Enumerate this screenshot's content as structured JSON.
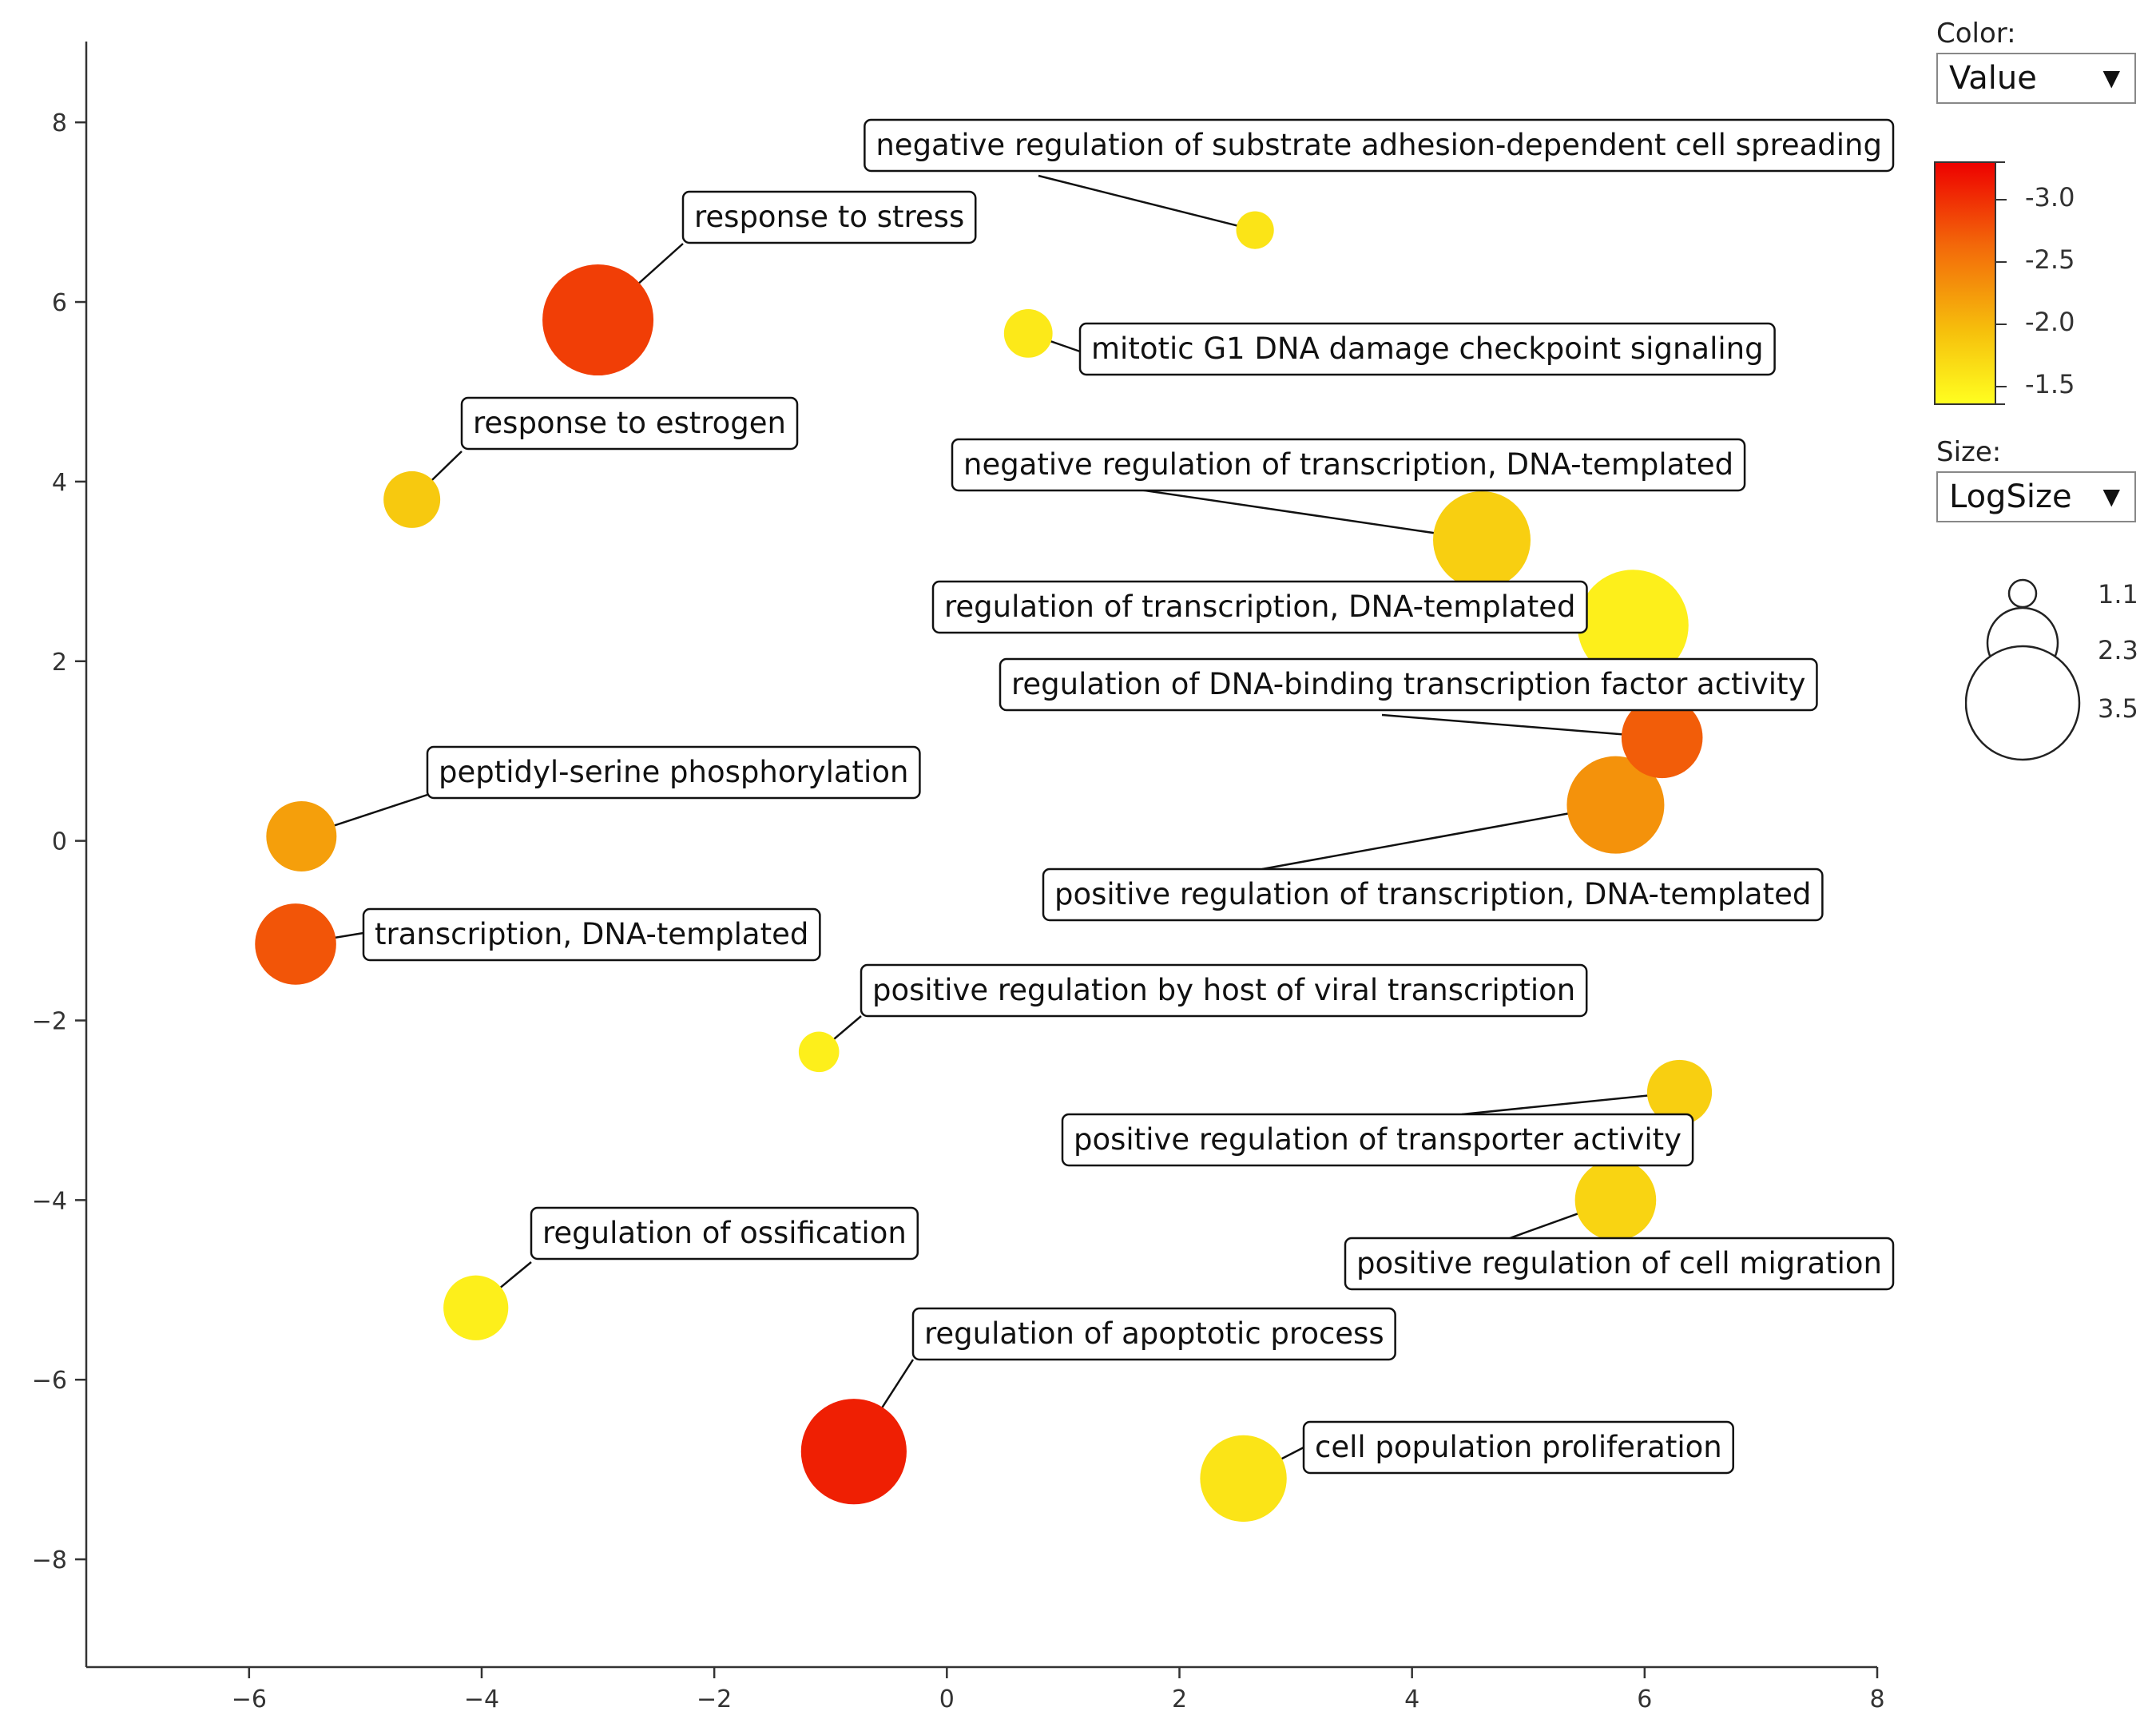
{
  "chart_data": {
    "type": "scatter",
    "xlim": [
      -7.4,
      8.0
    ],
    "ylim": [
      -9.2,
      8.9
    ],
    "xticks": [
      -6,
      -4,
      -2,
      0,
      2,
      4,
      6,
      8
    ],
    "yticks": [
      -8,
      -6,
      -4,
      -2,
      0,
      2,
      4,
      6,
      8
    ],
    "points": [
      {
        "label": "negative regulation of substrate adhesion-dependent cell spreading",
        "x": 2.65,
        "y": 6.8,
        "value": -1.6,
        "logsize": 0.8
      },
      {
        "label": "response to stress",
        "x": -3.0,
        "y": 5.8,
        "value": -2.9,
        "logsize": 3.5
      },
      {
        "label": "mitotic G1 DNA damage checkpoint signaling",
        "x": 0.7,
        "y": 5.65,
        "value": -1.55,
        "logsize": 1.2
      },
      {
        "label": "response to estrogen",
        "x": -4.6,
        "y": 3.8,
        "value": -1.85,
        "logsize": 1.5
      },
      {
        "label": "negative regulation of transcription, DNA-templated",
        "x": 4.6,
        "y": 3.35,
        "value": -1.8,
        "logsize": 3.0
      },
      {
        "label": "regulation of transcription, DNA-templated",
        "x": 5.9,
        "y": 2.4,
        "value": -1.5,
        "logsize": 3.5
      },
      {
        "label": "regulation of DNA-binding transcription factor activity",
        "x": 6.15,
        "y": 1.15,
        "value": -2.7,
        "logsize": 2.4
      },
      {
        "label": "positive regulation of transcription, DNA-templated",
        "x": 5.75,
        "y": 0.4,
        "value": -2.3,
        "logsize": 3.0
      },
      {
        "label": "peptidyl-serine phosphorylation",
        "x": -5.55,
        "y": 0.05,
        "value": -2.2,
        "logsize": 2.0
      },
      {
        "label": "transcription, DNA-templated",
        "x": -5.6,
        "y": -1.15,
        "value": -2.75,
        "logsize": 2.4
      },
      {
        "label": "positive regulation by host of viral transcription",
        "x": -1.1,
        "y": -2.35,
        "value": -1.5,
        "logsize": 0.9
      },
      {
        "label": "positive regulation of transporter activity",
        "x": 6.3,
        "y": -2.8,
        "value": -1.8,
        "logsize": 1.8
      },
      {
        "label": "positive regulation of cell migration",
        "x": 5.75,
        "y": -4.0,
        "value": -1.75,
        "logsize": 2.4
      },
      {
        "label": "regulation of ossification",
        "x": -4.05,
        "y": -5.2,
        "value": -1.5,
        "logsize": 1.8
      },
      {
        "label": "regulation of apoptotic process",
        "x": -0.8,
        "y": -6.8,
        "value": -3.1,
        "logsize": 3.3
      },
      {
        "label": "cell population proliferation",
        "x": 2.55,
        "y": -7.1,
        "value": -1.6,
        "logsize": 2.6
      }
    ],
    "color_scale": {
      "title": "Color:",
      "selected": "Value",
      "min": -3.3,
      "max": -1.35,
      "ticks": [
        "-3.0",
        "-2.5",
        "-2.0",
        "-1.5"
      ]
    },
    "size_scale": {
      "title": "Size:",
      "selected": "LogSize",
      "entries": [
        "1.1",
        "2.3",
        "3.5"
      ]
    }
  }
}
